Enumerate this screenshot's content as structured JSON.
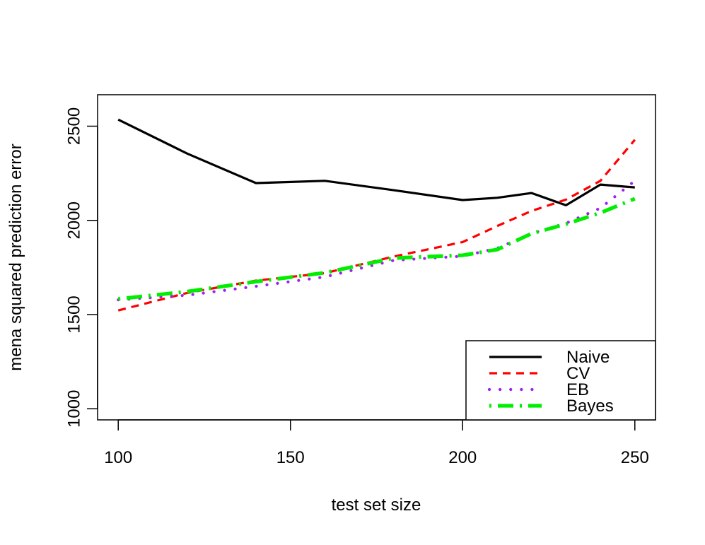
{
  "chart_data": {
    "type": "line",
    "title": "",
    "xlabel": "test set size",
    "ylabel": "mena squared prediction error",
    "xlim": [
      94,
      256
    ],
    "ylim": [
      941,
      2667
    ],
    "xticks": [
      100,
      150,
      200,
      250
    ],
    "yticks": [
      1000,
      1500,
      2000,
      2500
    ],
    "x": [
      100,
      120,
      140,
      160,
      180,
      200,
      210,
      220,
      230,
      240,
      250
    ],
    "series": [
      {
        "name": "Naive",
        "color": "#000000",
        "dash": "solid",
        "values": [
          2535,
          2355,
          2198,
          2210,
          2160,
          2108,
          2120,
          2145,
          2080,
          2190,
          2175
        ]
      },
      {
        "name": "CV",
        "color": "#ff0000",
        "dash": "dashed",
        "values": [
          1522,
          1615,
          1680,
          1720,
          1808,
          1885,
          1970,
          2050,
          2110,
          2210,
          2428
        ]
      },
      {
        "name": "EB",
        "color": "#a020f0",
        "dash": "dotted",
        "values": [
          1578,
          1603,
          1650,
          1700,
          1788,
          1810,
          1852,
          1930,
          1985,
          2065,
          2210
        ]
      },
      {
        "name": "Bayes",
        "color": "#00ee00",
        "dash": "dotdash",
        "values": [
          1583,
          1622,
          1675,
          1722,
          1800,
          1815,
          1845,
          1930,
          1980,
          2040,
          2115
        ]
      }
    ],
    "legend_position": "bottom-right",
    "grid": false
  }
}
